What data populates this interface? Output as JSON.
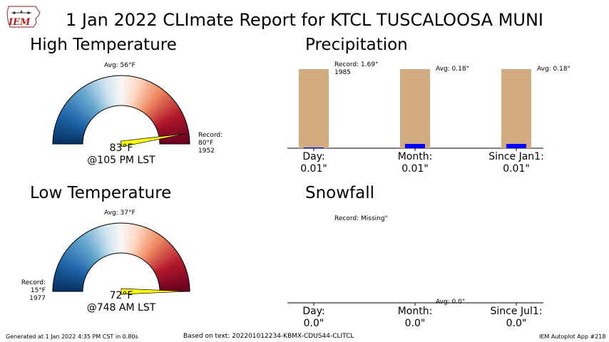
{
  "title": "1 Jan 2022 CLImate Report for KTCL TUSCALOOSA MUNI",
  "logo": {
    "text": "IEM",
    "icon": "iowa-state-outline-icon"
  },
  "high_temp": {
    "title": "High Temperature",
    "avg_label": "Avg: 56°F",
    "value_label": "83°F",
    "time_label": "@105 PM LST",
    "record_lines": [
      "Record:",
      "80°F",
      "1952"
    ],
    "value": 83,
    "avg": 56,
    "record": 80
  },
  "low_temp": {
    "title": "Low Temperature",
    "avg_label": "Avg: 37°F",
    "value_label": "72°F",
    "time_label": "@748 AM LST",
    "record_lines": [
      "Record:",
      "15°F",
      "1977"
    ],
    "value": 72,
    "avg": 37,
    "record": 15
  },
  "precip": {
    "title": "Precipitation",
    "record_label": "Record: 1.69\"",
    "record_year": "1985",
    "avg_labels": [
      "Avg: 0.18\"",
      "Avg: 0.18\""
    ],
    "categories": [
      "Day:",
      "Month:",
      "Since Jan1:"
    ],
    "values_text": [
      "0.01\"",
      "0.01\"",
      "0.01\""
    ]
  },
  "snow": {
    "title": "Snowfall",
    "record_label": "Record: Missing\"",
    "avg_label": "Avg: 0.0\"",
    "categories": [
      "Day:",
      "Month:",
      "Since Jul1:"
    ],
    "values_text": [
      "0.0\"",
      "0.0\"",
      "0.0\""
    ]
  },
  "footer": {
    "generated": "Generated at 1 Jan 2022 4:35 PM CST in 0.80s",
    "source": "Based on text: 202201012234-KBMX-CDUS44-CLITCL",
    "app": "IEM Autoplot App #218"
  },
  "colors": {
    "bar_record": "#d2ac80",
    "bar_obs": "#0000ff",
    "needle": "#ffff00",
    "needle_edge": "#000000"
  },
  "chart_data": [
    {
      "type": "gauge",
      "title": "High Temperature",
      "units": "°F",
      "observed": 83,
      "observed_time": "105 PM LST",
      "average": 56,
      "record": 80,
      "record_year": 1952,
      "colormap": "RdBu_r"
    },
    {
      "type": "gauge",
      "title": "Low Temperature",
      "units": "°F",
      "observed": 72,
      "observed_time": "748 AM LST",
      "average": 37,
      "record": 15,
      "record_year": 1977,
      "colormap": "RdBu_r"
    },
    {
      "type": "bar",
      "title": "Precipitation",
      "units": "inches",
      "categories": [
        "Day",
        "Month",
        "Since Jan1"
      ],
      "series": [
        {
          "name": "Observed",
          "values": [
            0.01,
            0.01,
            0.01
          ]
        },
        {
          "name": "Record",
          "values": [
            1.69,
            null,
            null
          ]
        },
        {
          "name": "Avg",
          "values": [
            null,
            0.18,
            0.18
          ]
        }
      ],
      "record_year": 1985
    },
    {
      "type": "bar",
      "title": "Snowfall",
      "units": "inches",
      "categories": [
        "Day",
        "Month",
        "Since Jul1"
      ],
      "series": [
        {
          "name": "Observed",
          "values": [
            0.0,
            0.0,
            0.0
          ]
        },
        {
          "name": "Avg",
          "values": [
            0.0,
            0.0,
            0.0
          ]
        }
      ],
      "record": "Missing"
    }
  ]
}
